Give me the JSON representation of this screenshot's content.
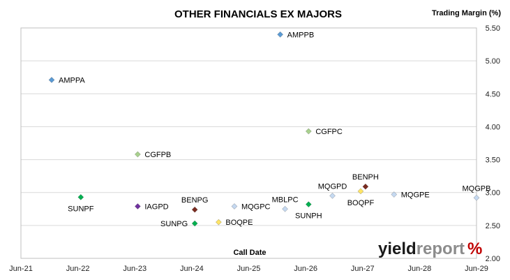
{
  "chart_data": {
    "type": "scatter",
    "title": "OTHER FINANCIALS EX MAJORS",
    "xlabel": "Call Date",
    "ylabel": "Trading Margin (%)",
    "x_axis": {
      "type": "date",
      "min": "2021-06-01",
      "max": "2029-06-01",
      "ticks": [
        "Jun-21",
        "Jun-22",
        "Jun-23",
        "Jun-24",
        "Jun-25",
        "Jun-26",
        "Jun-27",
        "Jun-28",
        "Jun-29"
      ]
    },
    "y_axis": {
      "min": 2.0,
      "max": 5.5,
      "position": "right",
      "ticks": [
        "2.00",
        "2.50",
        "3.00",
        "3.50",
        "4.00",
        "4.50",
        "5.00",
        "5.50"
      ]
    },
    "grid": {
      "horizontal": true,
      "vertical": false
    },
    "points": [
      {
        "label": "AMPPA",
        "x": "2021-12-15",
        "y": 4.71,
        "color": "#5b9bd5",
        "label_pos": "right"
      },
      {
        "label": "AMPPB",
        "x": "2025-12-20",
        "y": 5.4,
        "color": "#5b9bd5",
        "label_pos": "right"
      },
      {
        "label": "CGFPB",
        "x": "2023-06-20",
        "y": 3.58,
        "color": "#a9d18e",
        "label_pos": "right"
      },
      {
        "label": "CGFPC",
        "x": "2026-06-20",
        "y": 3.93,
        "color": "#a9d18e",
        "label_pos": "right"
      },
      {
        "label": "SUNPF",
        "x": "2022-06-20",
        "y": 2.93,
        "color": "#00b050",
        "label_pos": "below"
      },
      {
        "label": "IAGPD",
        "x": "2023-06-20",
        "y": 2.79,
        "color": "#7030a0",
        "label_pos": "right"
      },
      {
        "label": "BENPG",
        "x": "2024-06-20",
        "y": 2.74,
        "color": "#7b2c20",
        "label_pos": "above"
      },
      {
        "label": "SUNPG",
        "x": "2024-06-20",
        "y": 2.53,
        "color": "#00b050",
        "label_pos": "left"
      },
      {
        "label": "BOQPE",
        "x": "2024-11-20",
        "y": 2.55,
        "color": "#ffe566",
        "label_pos": "right"
      },
      {
        "label": "MQGPC",
        "x": "2025-03-01",
        "y": 2.79,
        "color": "#c5d9f1",
        "label_pos": "right"
      },
      {
        "label": "MBLPC",
        "x": "2026-01-20",
        "y": 2.75,
        "color": "#c5d9f1",
        "label_pos": "above"
      },
      {
        "label": "SUNPH",
        "x": "2026-06-20",
        "y": 2.82,
        "color": "#00b050",
        "label_pos": "below"
      },
      {
        "label": "MQGPD",
        "x": "2026-11-20",
        "y": 2.95,
        "color": "#c5d9f1",
        "label_pos": "above"
      },
      {
        "label": "BENPH",
        "x": "2027-06-20",
        "y": 3.09,
        "color": "#7b2c20",
        "label_pos": "above"
      },
      {
        "label": "BOQPF",
        "x": "2027-05-20",
        "y": 3.02,
        "color": "#ffe566",
        "label_pos": "below"
      },
      {
        "label": "MQGPE",
        "x": "2027-12-20",
        "y": 2.97,
        "color": "#c5d9f1",
        "label_pos": "right"
      },
      {
        "label": "MQGPB",
        "x": "2029-06-01",
        "y": 2.92,
        "color": "#c5d9f1",
        "label_pos": "above"
      }
    ]
  },
  "branding": {
    "logo_text_part1": "yield",
    "logo_text_part2": "report",
    "logo_symbol": "%",
    "colors": {
      "dark": "#1a1a1a",
      "grey": "#8c8c8c",
      "accent": "#c00000"
    }
  }
}
